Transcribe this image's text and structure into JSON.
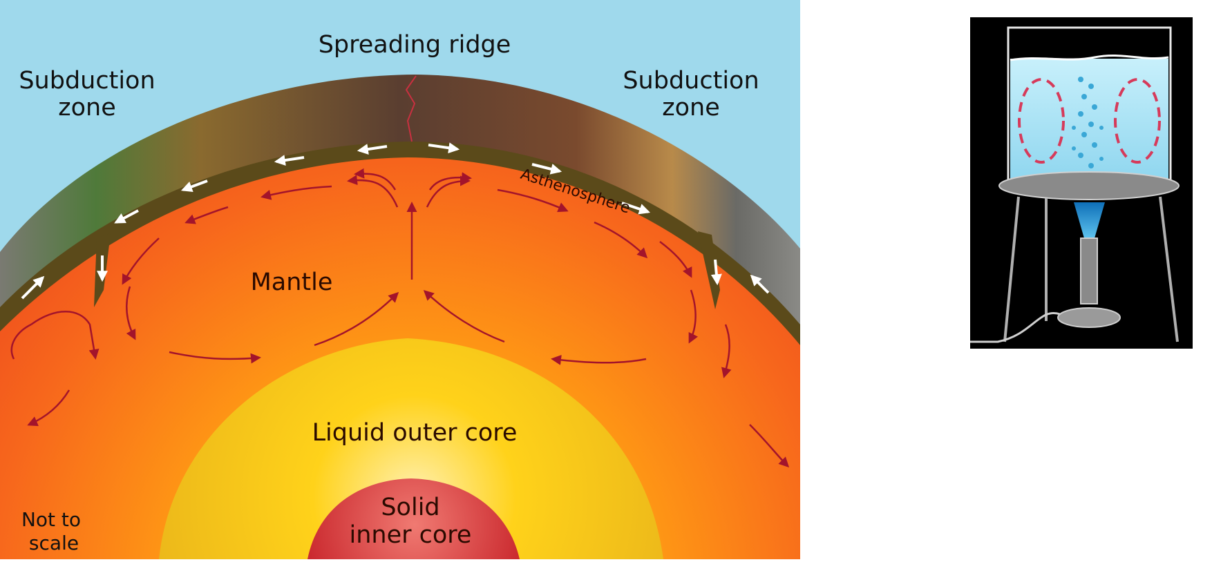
{
  "earth_diagram": {
    "labels": {
      "spreading_ridge": "Spreading ridge",
      "subduction_left_line1": "Subduction",
      "subduction_left_line2": "zone",
      "subduction_right_line1": "Subduction",
      "subduction_right_line2": "zone",
      "asthenosphere": "Asthenosphere",
      "mantle": "Mantle",
      "outer_core": "Liquid outer core",
      "inner_core_line1": "Solid",
      "inner_core_line2": "inner core",
      "scale_line1": "Not to",
      "scale_line2": "scale"
    },
    "colors": {
      "sky": "#9fd9ec",
      "crust_top": "#6e5a45",
      "lithosphere_band": "#5b4a1a",
      "mantle_outer": "#f15a1f",
      "mantle_inner": "#ff9a1a",
      "outer_core": "#ffd21a",
      "inner_core": "#cf2e2e",
      "convection_arrow": "#a3142b",
      "plate_motion_arrow": "#ffffff"
    }
  },
  "beaker_diagram": {
    "colors": {
      "background": "#000000",
      "water": "#aee6f7",
      "convection_current": "#d63a5a",
      "flame": "#1f8fd6",
      "stand": "#9a9a9a"
    }
  }
}
